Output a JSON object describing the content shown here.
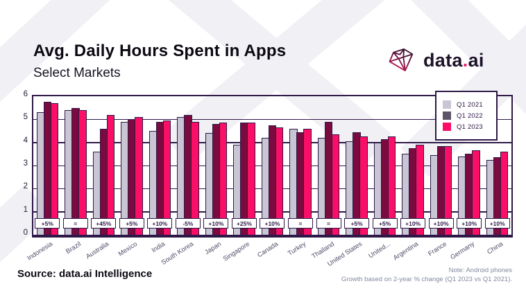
{
  "header": {
    "title": "Avg. Daily Hours Spent in Apps",
    "subtitle": "Select Markets"
  },
  "logo": {
    "text_left": "data",
    "dot": ".",
    "text_right": "ai",
    "icon": "diamond-gem-icon"
  },
  "footer": {
    "source": "Source: data.ai Intelligence",
    "note_line1": "Note: Android phones",
    "note_line2": "Growth based on 2-year % change (Q1 2023 vs Q1 2021)."
  },
  "colors": {
    "q1_2021_bar": "#c9c5d4",
    "q1_2022_bar": "#7b0b3f",
    "q1_2022_legend_swatch": "#5d5468",
    "q1_2023_bar": "#fb0f66",
    "outline": "#2d1847",
    "country_label": "#514b68",
    "note_text": "#858aa0",
    "watermark": "#f1f1f5"
  },
  "chart_data": {
    "type": "bar",
    "title": "Avg. Daily Hours Spent in Apps",
    "subtitle": "Select Markets",
    "ylim": [
      0,
      6
    ],
    "yticks": [
      0,
      1,
      2,
      3,
      4,
      5,
      6
    ],
    "grid": true,
    "legend_position": "top-right",
    "categories": [
      "Indonesia",
      "Brazil",
      "Australia",
      "Mexico",
      "India",
      "South Korea",
      "Japan",
      "Singapore",
      "Canada",
      "Turkey",
      "Thailand",
      "United States",
      "United...",
      "Argentina",
      "France",
      "Germany",
      "China"
    ],
    "series": [
      {
        "name": "Q1 2021",
        "values": [
          5.3,
          5.4,
          3.6,
          4.9,
          4.5,
          5.1,
          4.4,
          3.9,
          4.2,
          4.6,
          4.2,
          4.05,
          4.0,
          3.5,
          3.45,
          3.4,
          3.25
        ]
      },
      {
        "name": "Q1 2022",
        "values": [
          5.75,
          5.5,
          4.6,
          5.0,
          4.9,
          5.2,
          4.8,
          4.85,
          4.75,
          4.45,
          4.9,
          4.45,
          4.15,
          3.75,
          3.85,
          3.5,
          3.35
        ]
      },
      {
        "name": "Q1 2023",
        "values": [
          5.7,
          5.4,
          5.2,
          5.1,
          4.95,
          4.9,
          4.85,
          4.85,
          4.65,
          4.6,
          4.35,
          4.25,
          4.25,
          3.9,
          3.85,
          3.65,
          3.6
        ]
      }
    ],
    "growth_labels": [
      "+5%",
      "=",
      "+45%",
      "+5%",
      "+10%",
      "-5%",
      "+10%",
      "+25%",
      "+10%",
      "=",
      "=",
      "+5%",
      "+5%",
      "+10%",
      "+10%",
      "+10%",
      "+10%"
    ]
  }
}
